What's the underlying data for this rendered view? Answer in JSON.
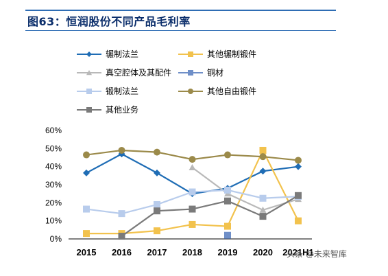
{
  "title": "图63：恒润股份不同产品毛利率",
  "watermark": "头条 @未来智库",
  "chart_data": {
    "type": "line",
    "categories": [
      "2015",
      "2016",
      "2017",
      "2018",
      "2019",
      "2020",
      "2021H1"
    ],
    "yticks": [
      "0%",
      "10%",
      "20%",
      "30%",
      "40%",
      "50%",
      "60%"
    ],
    "ylim": [
      0,
      60
    ],
    "series": [
      {
        "name": "辗制法兰",
        "color": "#1f6db5",
        "marker": "diamond",
        "values": [
          36.5,
          47,
          36.5,
          25,
          28,
          37.5,
          40
        ]
      },
      {
        "name": "其他辗制锻件",
        "color": "#f2c24d",
        "marker": "square",
        "values": [
          3,
          3,
          4.5,
          8,
          7,
          49,
          10
        ]
      },
      {
        "name": "真空腔体及其配件",
        "color": "#b9b9b9",
        "marker": "triangle",
        "values": [
          null,
          null,
          null,
          39.5,
          25,
          16,
          22
        ]
      },
      {
        "name": "铜材",
        "color": "#6f8fc8",
        "marker": "square",
        "values": [
          null,
          null,
          null,
          null,
          2,
          null,
          null
        ]
      },
      {
        "name": "锻制法兰",
        "color": "#b8ccec",
        "marker": "square",
        "values": [
          16.5,
          14,
          19,
          26,
          27,
          22.5,
          23.5
        ]
      },
      {
        "name": "其他自由锻件",
        "color": "#9b8a4a",
        "marker": "circle",
        "values": [
          46.5,
          49,
          48,
          44,
          46.5,
          45.5,
          43.5
        ]
      },
      {
        "name": "其他业务",
        "color": "#7a7a7a",
        "marker": "square",
        "values": [
          null,
          1.5,
          15.5,
          16.5,
          21,
          12.5,
          24
        ]
      }
    ]
  }
}
